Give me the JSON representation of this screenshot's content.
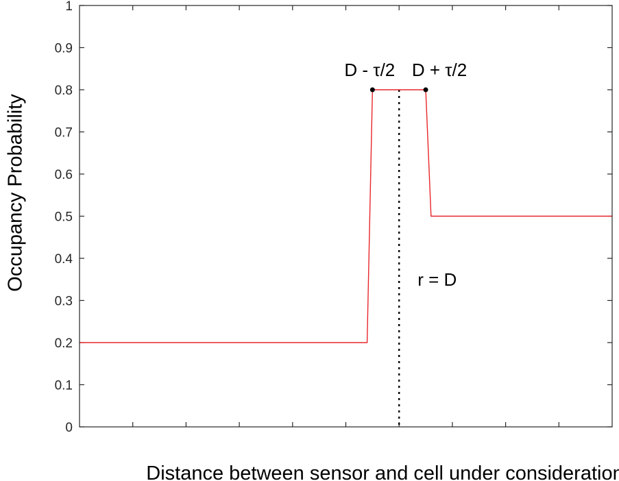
{
  "chart_data": {
    "type": "line",
    "xlabel": "Distance between sensor and cell under consideration",
    "ylabel": "Occupancy Probability",
    "ylim": [
      0,
      1
    ],
    "yticks": [
      "0",
      "0.1",
      "0.2",
      "0.3",
      "0.4",
      "0.5",
      "0.6",
      "0.7",
      "0.8",
      "0.9",
      "1"
    ],
    "x_tick_count": 10,
    "x_tick_labels_shown": false,
    "grid": false,
    "series": [
      {
        "color": "#e8262b",
        "x": [
          0,
          0.54,
          0.55,
          0.65,
          0.66,
          1.0
        ],
        "values": [
          0.2,
          0.2,
          0.8,
          0.8,
          0.5,
          0.5
        ]
      }
    ],
    "markers": [
      {
        "x": 0.55,
        "y": 0.8,
        "label": "D - τ/2"
      },
      {
        "x": 0.65,
        "y": 0.8,
        "label": "D + τ/2"
      }
    ],
    "vline": {
      "x": 0.6,
      "label": "r = D",
      "label_y": 0.35,
      "style": "dotted"
    },
    "colors": {
      "axis": "#262626",
      "line": "#e8262b",
      "marker": "#000000"
    }
  }
}
